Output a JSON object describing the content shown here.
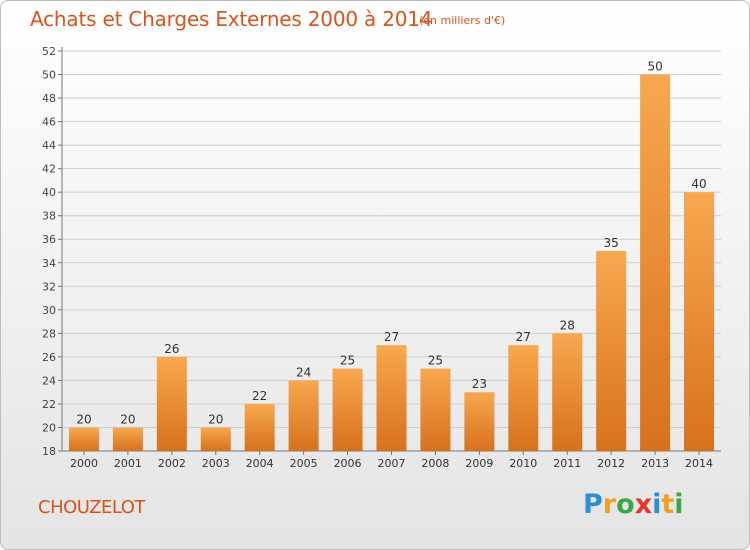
{
  "header": {
    "title": "Achats et Charges Externes 2000 à 2014",
    "subtitle": "(en milliers d'€)"
  },
  "footer": {
    "commune": "CHOUZELOT",
    "brand": "Proxiti",
    "brand_colors": [
      "#2a8fd8",
      "#f0a020",
      "#3aa84a",
      "#e8352a",
      "#2a8fd8",
      "#f0a020",
      "#3aa84a"
    ]
  },
  "colors": {
    "accent": "#d8541c",
    "bar_light": "#f7a84e",
    "bar_dark": "#d8711c"
  },
  "chart_data": {
    "type": "bar",
    "title": "Achats et Charges Externes 2000 à 2014",
    "subtitle": "(en milliers d'€)",
    "categories": [
      "2000",
      "2001",
      "2002",
      "2003",
      "2004",
      "2005",
      "2006",
      "2007",
      "2008",
      "2009",
      "2010",
      "2011",
      "2012",
      "2013",
      "2014"
    ],
    "values": [
      20,
      20,
      26,
      20,
      22,
      24,
      25,
      27,
      25,
      23,
      27,
      28,
      35,
      50,
      40
    ],
    "ylim": [
      18,
      52
    ],
    "yticks": [
      18,
      20,
      22,
      24,
      26,
      28,
      30,
      32,
      34,
      36,
      38,
      40,
      42,
      44,
      46,
      48,
      50,
      52
    ],
    "xlabel": "",
    "ylabel": "",
    "grid": true,
    "data_labels": true
  }
}
